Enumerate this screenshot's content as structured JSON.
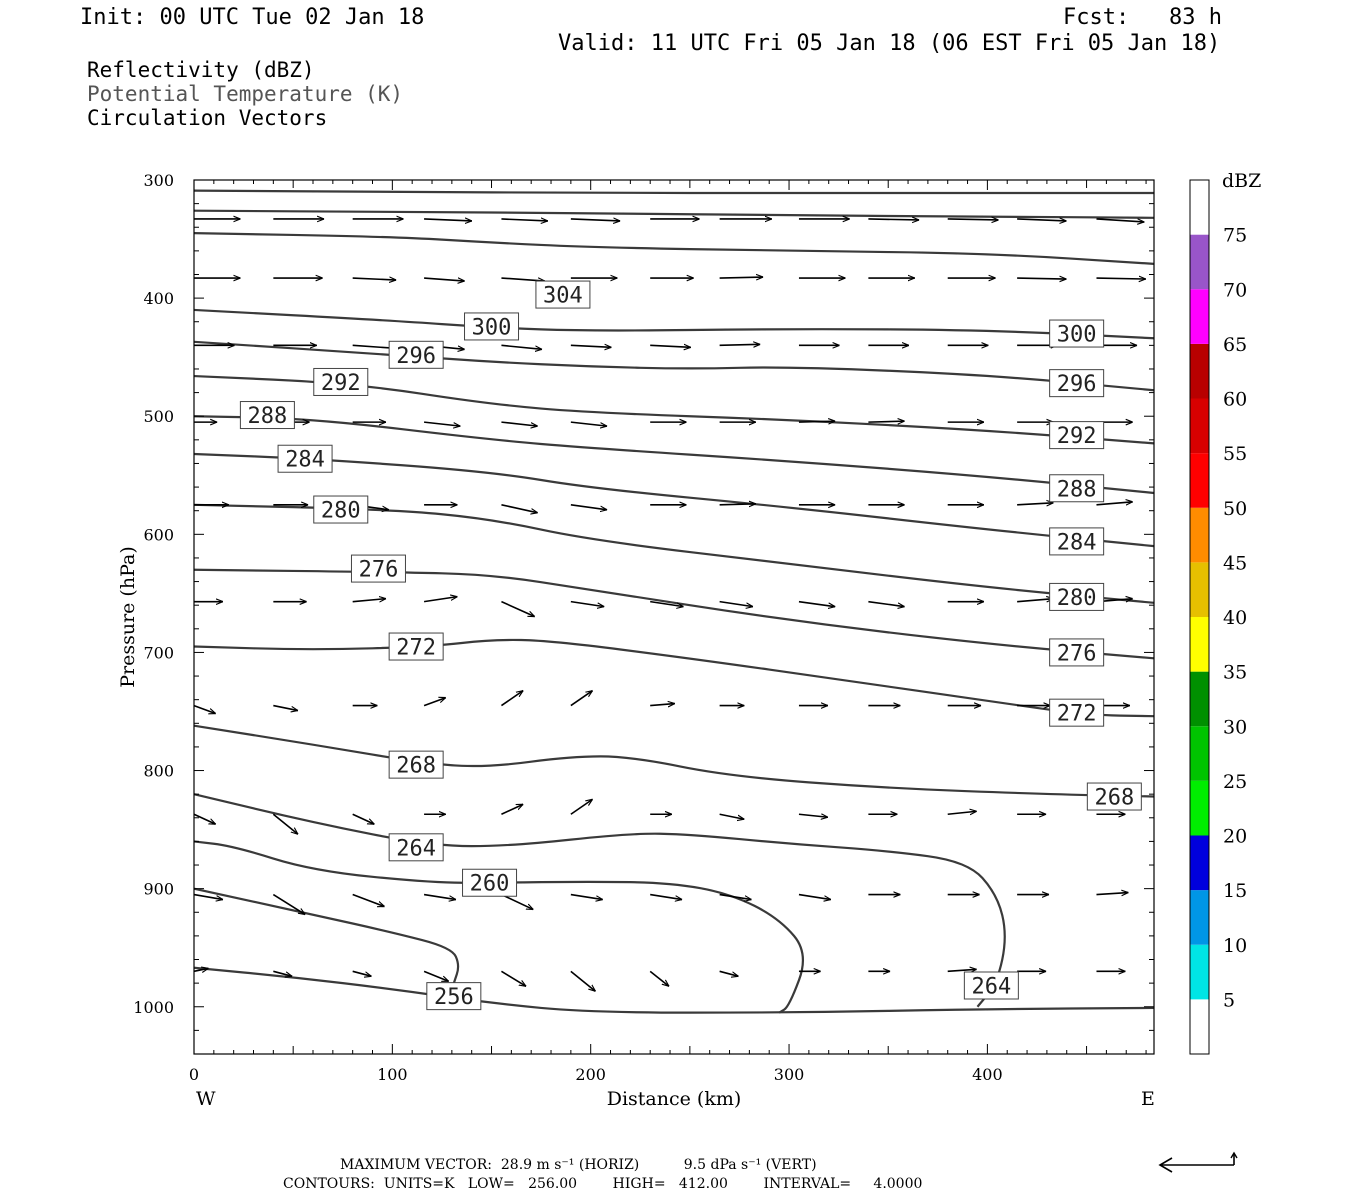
{
  "header": {
    "init": "Init: 00 UTC Tue 02 Jan 18",
    "fcst": "Fcst:   83 h",
    "valid": "Valid: 11 UTC Fri 05 Jan 18 (06 EST Fri 05 Jan 18)",
    "field1": "Reflectivity (dBZ)",
    "field2": "Potential Temperature (K)",
    "field3": "Circulation Vectors"
  },
  "footer": {
    "max_vector": "MAXIMUM VECTOR:  28.9 m s⁻¹ (HORIZ)          9.5 dPa s⁻¹ (VERT)",
    "contours": "CONTOURS:  UNITS=K   LOW=   256.00        HIGH=   412.00        INTERVAL=     4.0000"
  },
  "colors": {
    "contour": "#3a3a3a",
    "vector": "#000000",
    "subtle_text": "#555555"
  },
  "chart_data": {
    "type": "cross-section",
    "xlabel": "Distance (km)",
    "ylabel": "Pressure (hPa)",
    "xlim": [
      0,
      484
    ],
    "ylim": [
      300,
      1040
    ],
    "x_ticks": [
      0,
      100,
      200,
      300,
      400
    ],
    "y_ticks": [
      300,
      400,
      500,
      600,
      700,
      800,
      900,
      1000
    ],
    "x_end_labels": {
      "left": "W",
      "right": "E"
    },
    "colorbar": {
      "unit": "dBZ",
      "levels": [
        5,
        10,
        15,
        20,
        25,
        30,
        35,
        40,
        45,
        50,
        55,
        60,
        65,
        70,
        75
      ],
      "colors": [
        "#ffffff",
        "#00e5e5",
        "#0096e6",
        "#0000dd",
        "#00ee00",
        "#00c400",
        "#009000",
        "#ffff00",
        "#e6c000",
        "#ff8c00",
        "#ff0000",
        "#d80000",
        "#b80000",
        "#ff00ff",
        "#9955c9",
        "#ffffff"
      ]
    },
    "theta_contours": [
      {
        "value": 308,
        "points": [
          [
            0,
            309
          ],
          [
            100,
            310
          ],
          [
            200,
            311
          ],
          [
            300,
            311
          ],
          [
            400,
            311
          ],
          [
            484,
            311
          ]
        ]
      },
      {
        "value": 304,
        "points": [
          [
            0,
            326
          ],
          [
            100,
            327
          ],
          [
            200,
            328
          ],
          [
            300,
            330
          ],
          [
            400,
            331
          ],
          [
            484,
            332
          ]
        ]
      },
      {
        "value": 304,
        "label_at": [
          186,
          397
        ],
        "points": [
          [
            0,
            345
          ],
          [
            100,
            348
          ],
          [
            150,
            353
          ],
          [
            200,
            357
          ],
          [
            300,
            360
          ],
          [
            400,
            362
          ],
          [
            484,
            371
          ]
        ]
      },
      {
        "value": 300,
        "label_at": [
          150,
          424
        ],
        "points": [
          [
            0,
            410
          ],
          [
            100,
            419
          ],
          [
            150,
            425
          ],
          [
            200,
            428
          ],
          [
            300,
            426
          ],
          [
            400,
            427
          ],
          [
            484,
            434
          ]
        ]
      },
      {
        "value": 300,
        "label_at": [
          445,
          430
        ],
        "points": []
      },
      {
        "value": 296,
        "label_at": [
          112,
          448
        ],
        "points": [
          [
            0,
            437
          ],
          [
            100,
            448
          ],
          [
            150,
            454
          ],
          [
            200,
            458
          ],
          [
            250,
            460
          ],
          [
            300,
            458
          ],
          [
            400,
            465
          ],
          [
            484,
            478
          ]
        ]
      },
      {
        "value": 296,
        "label_at": [
          445,
          472
        ],
        "points": []
      },
      {
        "value": 292,
        "label_at": [
          74,
          471
        ],
        "points": [
          [
            0,
            466
          ],
          [
            80,
            472
          ],
          [
            150,
            490
          ],
          [
            200,
            497
          ],
          [
            300,
            503
          ],
          [
            400,
            512
          ],
          [
            484,
            523
          ]
        ]
      },
      {
        "value": 292,
        "label_at": [
          445,
          516
        ],
        "points": []
      },
      {
        "value": 288,
        "label_at": [
          37,
          499
        ],
        "points": [
          [
            0,
            500
          ],
          [
            60,
            502
          ],
          [
            150,
            520
          ],
          [
            200,
            527
          ],
          [
            300,
            538
          ],
          [
            400,
            551
          ],
          [
            484,
            565
          ]
        ]
      },
      {
        "value": 288,
        "label_at": [
          445,
          561
        ],
        "points": []
      },
      {
        "value": 284,
        "label_at": [
          56,
          536
        ],
        "points": [
          [
            0,
            532
          ],
          [
            60,
            536
          ],
          [
            150,
            547
          ],
          [
            200,
            561
          ],
          [
            300,
            577
          ],
          [
            400,
            596
          ],
          [
            484,
            610
          ]
        ]
      },
      {
        "value": 284,
        "label_at": [
          445,
          606
        ],
        "points": []
      },
      {
        "value": 280,
        "label_at": [
          74,
          579
        ],
        "points": [
          [
            0,
            575
          ],
          [
            100,
            579
          ],
          [
            150,
            587
          ],
          [
            200,
            605
          ],
          [
            300,
            625
          ],
          [
            400,
            645
          ],
          [
            484,
            658
          ]
        ]
      },
      {
        "value": 280,
        "label_at": [
          445,
          653
        ],
        "points": []
      },
      {
        "value": 276,
        "label_at": [
          93,
          629
        ],
        "points": [
          [
            0,
            630
          ],
          [
            100,
            632
          ],
          [
            150,
            634
          ],
          [
            200,
            647
          ],
          [
            300,
            673
          ],
          [
            400,
            693
          ],
          [
            484,
            705
          ]
        ]
      },
      {
        "value": 276,
        "label_at": [
          445,
          700
        ],
        "points": []
      },
      {
        "value": 272,
        "label_at": [
          112,
          695
        ],
        "points": [
          [
            0,
            695
          ],
          [
            60,
            698
          ],
          [
            120,
            695
          ],
          [
            150,
            689
          ],
          [
            180,
            690
          ],
          [
            250,
            705
          ],
          [
            330,
            724
          ],
          [
            400,
            741
          ],
          [
            450,
            753
          ],
          [
            484,
            754
          ]
        ]
      },
      {
        "value": 272,
        "label_at": [
          445,
          751
        ],
        "points": []
      },
      {
        "value": 268,
        "label_at": [
          112,
          795
        ],
        "points": [
          [
            0,
            762
          ],
          [
            60,
            778
          ],
          [
            120,
            795
          ],
          [
            150,
            797
          ],
          [
            190,
            788
          ],
          [
            220,
            788
          ],
          [
            270,
            805
          ],
          [
            350,
            815
          ],
          [
            430,
            820
          ],
          [
            484,
            822
          ]
        ]
      },
      {
        "value": 268,
        "label_at": [
          464,
          822
        ],
        "points": []
      },
      {
        "value": 264,
        "label_at": [
          112,
          865
        ],
        "points": [
          [
            0,
            820
          ],
          [
            60,
            844
          ],
          [
            120,
            864
          ],
          [
            160,
            864
          ],
          [
            220,
            853
          ],
          [
            250,
            854
          ],
          [
            300,
            862
          ],
          [
            350,
            868
          ],
          [
            390,
            877
          ],
          [
            405,
            905
          ],
          [
            410,
            940
          ],
          [
            405,
            980
          ],
          [
            395,
            1000
          ]
        ]
      },
      {
        "value": 264,
        "label_at": [
          402,
          982
        ],
        "points": []
      },
      {
        "value": 260,
        "label_at": [
          149,
          895
        ],
        "points": [
          [
            0,
            860
          ],
          [
            20,
            864
          ],
          [
            60,
            885
          ],
          [
            120,
            895
          ],
          [
            150,
            895
          ],
          [
            200,
            894
          ],
          [
            240,
            895
          ],
          [
            270,
            904
          ],
          [
            295,
            925
          ],
          [
            310,
            955
          ],
          [
            300,
            1000
          ],
          [
            295,
            1005
          ]
        ]
      },
      {
        "value": 256,
        "label_at": [
          131,
          991
        ],
        "points": [
          [
            0,
            900
          ],
          [
            60,
            922
          ],
          [
            100,
            937
          ],
          [
            130,
            950
          ],
          [
            134,
            965
          ],
          [
            131,
            980
          ]
        ]
      },
      {
        "value": 252,
        "points": [
          [
            0,
            967
          ],
          [
            50,
            975
          ],
          [
            100,
            985
          ],
          [
            150,
            997
          ],
          [
            200,
            1005
          ],
          [
            300,
            1005
          ],
          [
            400,
            1002
          ],
          [
            484,
            1001
          ]
        ]
      }
    ],
    "vector_rows": [
      {
        "p": 333,
        "x": [
          0,
          40,
          80,
          116,
          155,
          190,
          230,
          265,
          305,
          340,
          380,
          415,
          455
        ],
        "dx": [
          32,
          35,
          35,
          33,
          32,
          34,
          34,
          36,
          35,
          35,
          35,
          34,
          33
        ],
        "dp": [
          0,
          0,
          0,
          2,
          2,
          2,
          0,
          0,
          0,
          1,
          1,
          2,
          3
        ]
      },
      {
        "p": 383,
        "x": [
          0,
          40,
          80,
          116,
          155,
          190,
          230,
          265,
          305,
          340,
          380,
          415,
          455
        ],
        "dx": [
          32,
          34,
          30,
          28,
          30,
          32,
          30,
          30,
          32,
          32,
          33,
          34,
          34
        ],
        "dp": [
          0,
          0,
          2,
          3,
          3,
          0,
          0,
          -1,
          0,
          0,
          0,
          1,
          1
        ]
      },
      {
        "p": 440,
        "x": [
          0,
          40,
          80,
          116,
          155,
          190,
          230,
          265,
          305,
          340,
          380,
          415,
          455
        ],
        "dx": [
          28,
          30,
          30,
          28,
          28,
          28,
          28,
          28,
          28,
          28,
          28,
          28,
          28
        ],
        "dp": [
          0,
          0,
          3,
          4,
          4,
          2,
          2,
          -1,
          0,
          0,
          0,
          0,
          0
        ]
      },
      {
        "p": 505,
        "x": [
          0,
          40,
          80,
          116,
          155,
          190,
          230,
          265,
          305,
          340,
          380,
          415,
          455
        ],
        "dx": [
          16,
          25,
          23,
          25,
          25,
          25,
          25,
          25,
          25,
          25,
          25,
          25,
          25
        ],
        "dp": [
          0,
          0,
          0,
          4,
          4,
          4,
          0,
          0,
          -1,
          -1,
          0,
          0,
          0
        ]
      },
      {
        "p": 575,
        "x": [
          0,
          40,
          80,
          116,
          155,
          190,
          230,
          265,
          305,
          340,
          380,
          415,
          455
        ],
        "dx": [
          24,
          24,
          25,
          23,
          25,
          25,
          25,
          25,
          25,
          25,
          25,
          25,
          25
        ],
        "dp": [
          0,
          0,
          5,
          0,
          8,
          5,
          0,
          -1,
          0,
          0,
          0,
          -2,
          -3
        ]
      },
      {
        "p": 657,
        "x": [
          0,
          40,
          80,
          116,
          155,
          190,
          230,
          265,
          305,
          340,
          380,
          415,
          455
        ],
        "dx": [
          20,
          23,
          23,
          23,
          23,
          23,
          23,
          23,
          25,
          25,
          25,
          25,
          25
        ],
        "dp": [
          0,
          0,
          -3,
          -5,
          15,
          5,
          5,
          5,
          5,
          5,
          0,
          -3,
          -3
        ]
      },
      {
        "p": 745,
        "x": [
          0,
          40,
          80,
          116,
          155,
          190,
          230,
          265,
          305,
          340,
          380,
          415,
          455
        ],
        "dx": [
          15,
          17,
          17,
          15,
          15,
          15,
          17,
          17,
          20,
          22,
          23,
          23,
          23
        ],
        "dp": [
          8,
          5,
          0,
          -8,
          -15,
          -15,
          -2,
          0,
          0,
          0,
          0,
          0,
          0
        ]
      },
      {
        "p": 837,
        "x": [
          0,
          40,
          80,
          116,
          155,
          190,
          230,
          265,
          305,
          340,
          380,
          415,
          455
        ],
        "dx": [
          15,
          17,
          15,
          15,
          15,
          15,
          15,
          17,
          20,
          20,
          20,
          20,
          20
        ],
        "dp": [
          10,
          20,
          10,
          0,
          -10,
          -15,
          0,
          5,
          3,
          0,
          -3,
          0,
          0
        ]
      },
      {
        "p": 905,
        "x": [
          0,
          40,
          80,
          116,
          155,
          190,
          230,
          265,
          305,
          340,
          380,
          415,
          455
        ],
        "dx": [
          20,
          22,
          22,
          22,
          22,
          22,
          22,
          22,
          22,
          22,
          22,
          22,
          22
        ],
        "dp": [
          5,
          20,
          12,
          5,
          15,
          5,
          5,
          5,
          5,
          0,
          0,
          0,
          -2
        ]
      },
      {
        "p": 970,
        "x": [
          0,
          40,
          80,
          116,
          155,
          190,
          230,
          265,
          305,
          340,
          380,
          415,
          455
        ],
        "dx": [
          10,
          13,
          13,
          17,
          17,
          17,
          13,
          13,
          15,
          15,
          20,
          20,
          20
        ],
        "dp": [
          -3,
          5,
          5,
          10,
          15,
          20,
          15,
          5,
          0,
          0,
          -2,
          0,
          0
        ]
      }
    ]
  }
}
